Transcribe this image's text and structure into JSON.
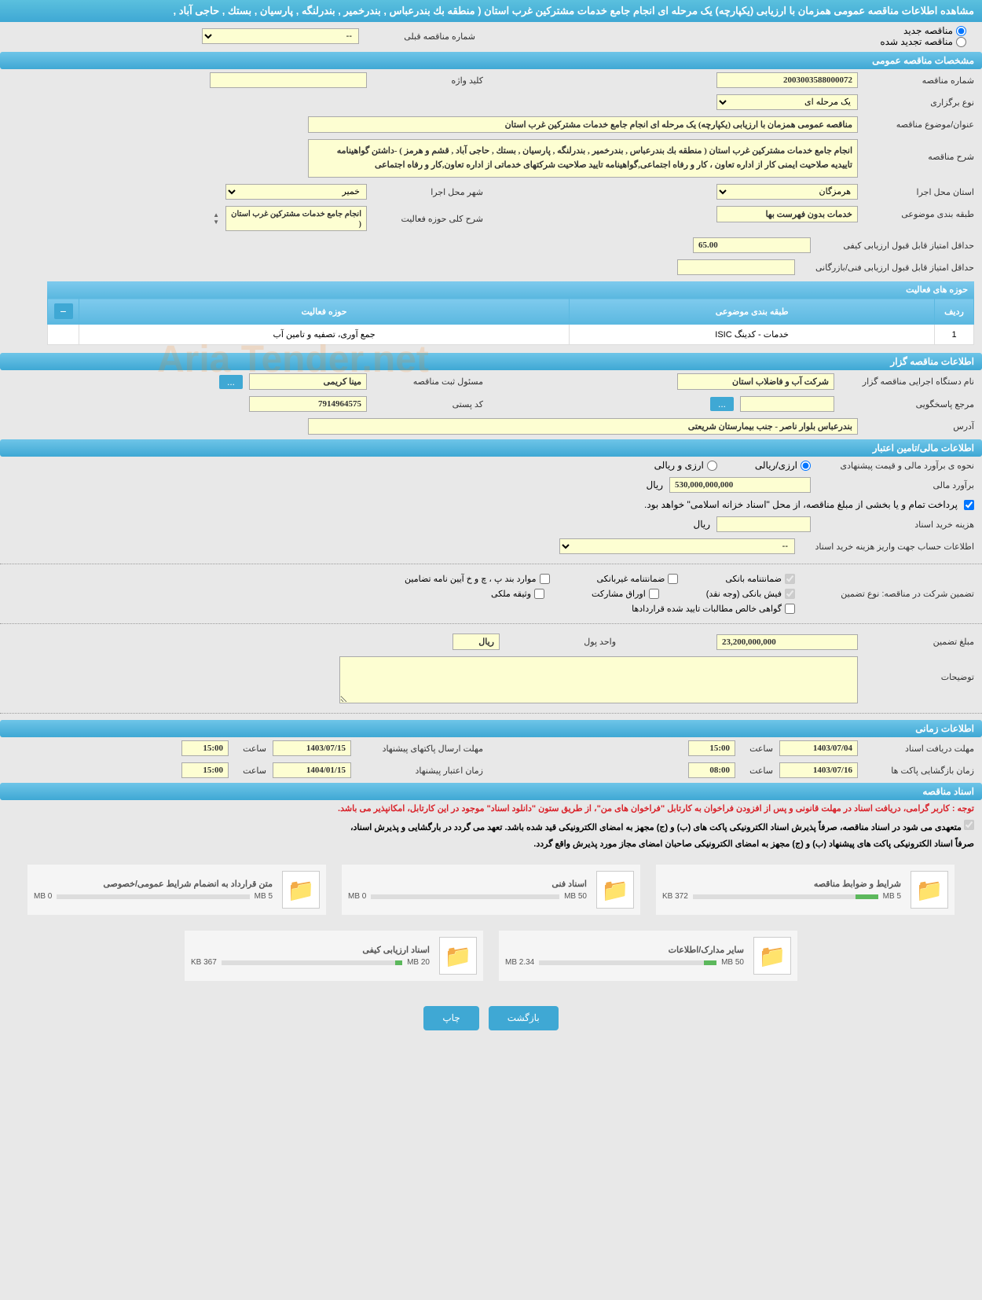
{
  "header": {
    "title": "مشاهده اطلاعات مناقصه عمومی همزمان با ارزیابی (یکپارچه) یک مرحله ای انجام جامع خدمات مشترکین غرب استان ( منطقه بك بندرعباس , بندرخمیر , بندرلنگه , پارسیان , بستك , حاجی آباد ,"
  },
  "tender_type": {
    "new_label": "مناقصه جدید",
    "renewed_label": "مناقصه تجدید شده",
    "prev_number_label": "شماره مناقصه قبلی",
    "prev_number_value": "--"
  },
  "sections": {
    "general": "مشخصات مناقصه عمومی",
    "organizer": "اطلاعات مناقصه گزار",
    "financial": "اطلاعات مالی/تامین اعتبار",
    "timing": "اطلاعات زمانی",
    "documents": "اسناد مناقصه"
  },
  "general": {
    "number_label": "شماره مناقصه",
    "number_value": "2003003588000072",
    "keyword_label": "کلید واژه",
    "type_label": "نوع برگزاری",
    "type_value": "یک مرحله ای",
    "subject_label": "عنوان/موضوع مناقصه",
    "subject_value": "مناقصه عمومی همزمان با ارزیابی (یکپارچه) یک مرحله ای انجام جامع خدمات مشترکین غرب استان",
    "description_label": "شرح مناقصه",
    "description_value": "انجام جامع خدمات مشترکین غرب استان ( منطقه بك بندرعباس , بندرخمیر , بندرلنگه , پارسیان , بستك , حاجی آباد , قشم  و هرمز )  -داشتن گواهینامه تاییدیه صلاحیت ایمنی کار از اداره تعاون ، کار و رفاه اجتماعی,گواهینامه تایید صلاحیت شرکتهای خدماتی از اداره تعاون,کار و رفاه اجتماعی",
    "province_label": "استان محل اجرا",
    "province_value": "هرمزگان",
    "city_label": "شهر محل اجرا",
    "city_value": "خمیر",
    "category_label": "طبقه بندی موضوعی",
    "category_value": "خدمات بدون فهرست بها",
    "scope_label": "شرح کلی حوزه فعالیت",
    "scope_value": "انجام جامع خدمات مشترکین غرب استان (",
    "min_quality_label": "حداقل امتیاز قابل قبول ارزیابی کیفی",
    "min_quality_value": "65.00",
    "min_tech_label": "حداقل امتیاز قابل قبول ارزیابی فنی/بازرگانی",
    "activities_header": "حوزه های فعالیت",
    "col_row": "ردیف",
    "col_category": "طبقه بندی موضوعی",
    "col_scope": "حوزه فعالیت",
    "row1_num": "1",
    "row1_cat": "خدمات - کدینگ ISIC",
    "row1_scope": "جمع آوری، تصفیه و تامین آب"
  },
  "organizer": {
    "name_label": "نام دستگاه اجرایی مناقصه گزار",
    "name_value": "شرکت آب و فاضلاب استان",
    "registrar_label": "مسئول ثبت مناقصه",
    "registrar_value": "مینا کریمی",
    "responder_label": "مرجع پاسخگویی",
    "postal_label": "کد پستی",
    "postal_value": "7914964575",
    "address_label": "آدرس",
    "address_value": "بندرعباس بلوار ناصر - جنب بیمارستان شریعتی"
  },
  "financial": {
    "estimate_method_label": "نحوه ی برآورد مالی و قیمت پیشنهادی",
    "rial_option": "ارزی/ریالی",
    "currency_option": "ارزی و ریالی",
    "estimate_label": "برآورد مالی",
    "estimate_value": "530,000,000,000",
    "currency_unit": "ریال",
    "payment_note": "پرداخت تمام و یا بخشی از مبلغ مناقصه، از محل \"اسناد خزانه اسلامی\" خواهد بود.",
    "purchase_cost_label": "هزینه خرید اسناد",
    "account_info_label": "اطلاعات حساب جهت واریز هزینه خرید اسناد",
    "account_info_value": "--",
    "guarantee_label": "تضمین شرکت در مناقصه:   نوع تضمین",
    "chk_bank": "ضمانتنامه بانکی",
    "chk_nonbank": "ضمانتنامه غیربانکی",
    "chk_items": "موارد بند پ ، چ و خ آیین نامه تضامین",
    "chk_cash": "فیش بانکی (وجه نقد)",
    "chk_bonds": "اوراق مشارکت",
    "chk_property": "وثیقه ملکی",
    "chk_receivables": "گواهی خالص مطالبات تایید شده قراردادها",
    "guarantee_amount_label": "مبلغ تضمین",
    "guarantee_amount_value": "23,200,000,000",
    "unit_label": "واحد پول",
    "unit_value": "ریال",
    "notes_label": "توضیحات"
  },
  "timing": {
    "receive_deadline_label": "مهلت دریافت اسناد",
    "receive_deadline_date": "1403/07/04",
    "receive_deadline_time_label": "ساعت",
    "receive_deadline_time": "15:00",
    "submit_deadline_label": "مهلت ارسال پاکتهای پیشنهاد",
    "submit_deadline_date": "1403/07/15",
    "submit_deadline_time": "15:00",
    "opening_label": "زمان بازگشایی پاکت ها",
    "opening_date": "1403/07/16",
    "opening_time": "08:00",
    "validity_label": "زمان اعتبار پیشنهاد",
    "validity_date": "1404/01/15",
    "validity_time": "15:00"
  },
  "documents": {
    "red_note": "توجه : کاربر گرامی، دریافت اسناد در مهلت قانونی و پس از افزودن فراخوان به کارتابل \"فراخوان های من\"، از طریق ستون \"دانلود اسناد\" موجود در این کارتابل، امکانپذیر می باشد.",
    "black_note1": "متعهدی می شود در اسناد مناقصه، صرفاً پذیرش اسناد الکترونیکی پاکت های (ب) و (ج) مجهز به امضای الکترونیکی قید شده باشد. تعهد می گردد در بارگشایی و پذیرش اسناد،",
    "black_note2": "صرفاً اسناد الکترونیکی پاکت های پیشنهاد (ب) و (ج) مجهز به امضای الکترونیکی صاحبان امضای مجاز مورد پذیرش واقع گردد.",
    "files": [
      {
        "title": "شرایط و ضوابط مناقصه",
        "used": "372 KB",
        "max": "5 MB",
        "fill": 12
      },
      {
        "title": "اسناد فنی",
        "used": "0 MB",
        "max": "50 MB",
        "fill": 0
      },
      {
        "title": "متن قرارداد به انضمام شرایط عمومی/خصوصی",
        "used": "0 MB",
        "max": "5 MB",
        "fill": 0
      },
      {
        "title": "سایر مدارک/اطلاعات",
        "used": "2.34 MB",
        "max": "50 MB",
        "fill": 7
      },
      {
        "title": "اسناد ارزیابی کیفی",
        "used": "367 KB",
        "max": "20 MB",
        "fill": 4
      }
    ]
  },
  "buttons": {
    "back": "بازگشت",
    "print": "چاپ"
  },
  "watermark": "Aria Tender.net",
  "colors": {
    "header_bg": "#3fa8d4",
    "input_bg": "#fdfed2",
    "btn_bg": "#3fa8d4"
  }
}
